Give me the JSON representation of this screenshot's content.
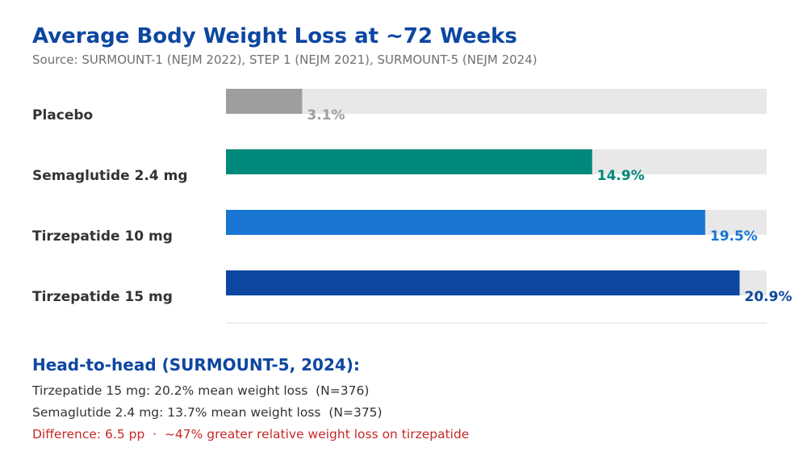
{
  "title": "Average Body Weight Loss at ~72 Weeks",
  "subtitle": "Source: SURMOUNT-1 (NEJM 2022), STEP 1 (NEJM 2021), SURMOUNT-5 (NEJM 2024)",
  "chart_data": {
    "type": "bar",
    "orientation": "horizontal",
    "title": "Average Body Weight Loss at ~72 Weeks",
    "categories": [
      "Placebo",
      "Semaglutide 2.4 mg",
      "Tirzepatide 10 mg",
      "Tirzepatide 15 mg"
    ],
    "values": [
      3.1,
      14.9,
      19.5,
      20.9
    ],
    "value_labels": [
      "3.1%",
      "14.9%",
      "19.5%",
      "20.9%"
    ],
    "colors": [
      "#9e9e9e",
      "#00897b",
      "#1976d2",
      "#0d47a1"
    ],
    "track_color": "#e8e8e8",
    "xlim": [
      0,
      22
    ],
    "grid": false,
    "legend": "none"
  },
  "head_to_head": {
    "title": "Head-to-head (SURMOUNT-5, 2024):",
    "line1": "Tirzepatide 15 mg: 20.2% mean weight loss  (N=376)",
    "line2": "Semaglutide 2.4 mg: 13.7% mean weight loss  (N=375)",
    "line3": "Difference: 6.5 pp  ·  ~47% greater relative weight loss on tirzepatide",
    "line3_color": "#c62828"
  }
}
